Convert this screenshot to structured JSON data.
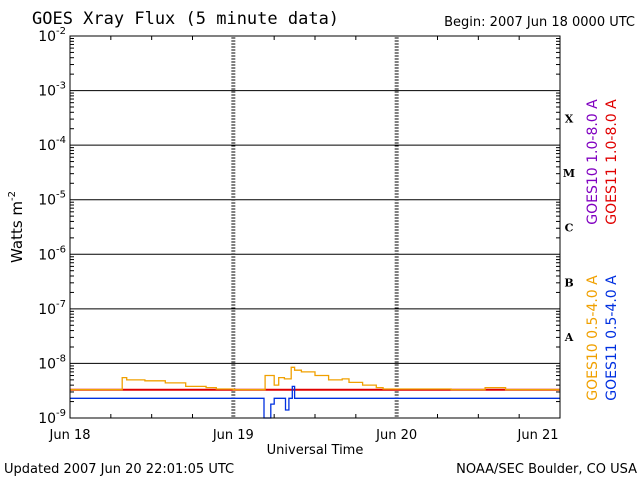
{
  "chart_data": {
    "type": "line",
    "title": "GOES Xray Flux (5 minute data)",
    "begin_label": "Begin:  2007 Jun 18 0000 UTC",
    "ylabel": "Watts m",
    "ylabel_exp": "-2",
    "xlabel": "Universal Time",
    "yscale": "log",
    "ylim": [
      1e-09,
      0.01
    ],
    "xlim": [
      "2007-06-18 00:00",
      "2007-06-21 00:00"
    ],
    "y_ticks": [
      {
        "base": "10",
        "exp": "-2",
        "value": 0.01
      },
      {
        "base": "10",
        "exp": "-3",
        "value": 0.001
      },
      {
        "base": "10",
        "exp": "-4",
        "value": 0.0001
      },
      {
        "base": "10",
        "exp": "-5",
        "value": 1e-05
      },
      {
        "base": "10",
        "exp": "-6",
        "value": 1e-06
      },
      {
        "base": "10",
        "exp": "-7",
        "value": 1e-07
      },
      {
        "base": "10",
        "exp": "-8",
        "value": 1e-08
      },
      {
        "base": "10",
        "exp": "-9",
        "value": 1e-09
      }
    ],
    "x_ticks": [
      {
        "label": "Jun 18",
        "day": 0
      },
      {
        "label": "Jun 19",
        "day": 1
      },
      {
        "label": "Jun 20",
        "day": 2
      },
      {
        "label": "Jun 21",
        "day": 3
      }
    ],
    "flare_classes": [
      {
        "label": "X",
        "value": 0.00032
      },
      {
        "label": "M",
        "value": 3.2e-05
      },
      {
        "label": "C",
        "value": 3.2e-06
      },
      {
        "label": "B",
        "value": 3.2e-07
      },
      {
        "label": "A",
        "value": 3.2e-08
      }
    ],
    "series": [
      {
        "name": "GOES10 1.0-8.0 A",
        "color": "#8000c0",
        "x": [
          "2007-06-18 00:00",
          "2007-06-21 00:00"
        ],
        "y": [
          3.3e-09,
          3.3e-09
        ]
      },
      {
        "name": "GOES11 1.0-8.0 A",
        "color": "#e00000",
        "x": [
          "2007-06-18 00:00",
          "2007-06-21 00:00"
        ],
        "y": [
          3.3e-09,
          3.3e-09
        ]
      },
      {
        "name": "GOES10 0.5-4.0 A",
        "color": "#f0a000",
        "x": [
          "2007-06-18 00:00",
          "2007-06-18 07:00",
          "2007-06-18 07:40",
          "2007-06-18 08:20",
          "2007-06-18 11:00",
          "2007-06-18 14:00",
          "2007-06-18 17:00",
          "2007-06-18 20:00",
          "2007-06-18 21:30",
          "2007-06-19 00:00",
          "2007-06-19 04:00",
          "2007-06-19 04:40",
          "2007-06-19 06:00",
          "2007-06-19 06:40",
          "2007-06-19 07:30",
          "2007-06-19 08:30",
          "2007-06-19 09:00",
          "2007-06-19 10:00",
          "2007-06-19 12:00",
          "2007-06-19 14:00",
          "2007-06-19 16:00",
          "2007-06-19 17:00",
          "2007-06-19 19:00",
          "2007-06-19 21:00",
          "2007-06-19 22:00",
          "2007-06-20 00:00",
          "2007-06-20 08:00",
          "2007-06-20 12:00",
          "2007-06-20 13:00",
          "2007-06-20 16:00",
          "2007-06-20 17:00",
          "2007-06-21 00:00"
        ],
        "y": [
          3.3e-09,
          3.3e-09,
          5.5e-09,
          5e-09,
          4.8e-09,
          4.4e-09,
          3.8e-09,
          3.6e-09,
          3.4e-09,
          3.3e-09,
          3.3e-09,
          6e-09,
          4e-09,
          5.5e-09,
          5.2e-09,
          8.5e-09,
          7.5e-09,
          7e-09,
          6e-09,
          5e-09,
          5.2e-09,
          4.5e-09,
          4e-09,
          3.6e-09,
          3.4e-09,
          3.4e-09,
          3.3e-09,
          3.3e-09,
          3.6e-09,
          3.3e-09,
          3.3e-09,
          3.3e-09
        ]
      },
      {
        "name": "GOES11 0.5-4.0 A",
        "color": "#0030e0",
        "x": [
          "2007-06-18 00:00",
          "2007-06-19 04:00",
          "2007-06-19 04:30",
          "2007-06-19 05:00",
          "2007-06-19 05:30",
          "2007-06-19 06:00",
          "2007-06-19 07:00",
          "2007-06-19 07:40",
          "2007-06-19 08:10",
          "2007-06-19 08:40",
          "2007-06-19 09:00",
          "2007-06-19 09:30",
          "2007-06-21 00:00"
        ],
        "y": [
          2.3e-09,
          2.3e-09,
          1e-09,
          1e-09,
          1.8e-09,
          2.3e-09,
          2.3e-09,
          1.4e-09,
          2.3e-09,
          3.8e-09,
          2.3e-09,
          2.3e-09,
          2.3e-09
        ]
      }
    ]
  },
  "footer": {
    "updated": "Updated 2007 Jun 20 22:01:05 UTC",
    "credit": "NOAA/SEC Boulder, CO USA"
  }
}
